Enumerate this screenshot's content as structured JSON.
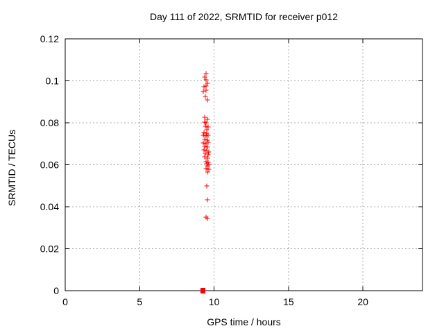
{
  "chart": {
    "title": "Day 111 of 2022, SRMTID for receiver p012",
    "xlabel": "GPS time / hours",
    "ylabel": "SRMTID / TECUs"
  },
  "chart_data": {
    "type": "scatter",
    "title": "Day 111 of 2022, SRMTID for receiver p012",
    "xlabel": "GPS time / hours",
    "ylabel": "SRMTID / TECUs",
    "xlim": [
      0,
      24
    ],
    "ylim": [
      0,
      0.12
    ],
    "xticks": [
      {
        "value": 0,
        "label": "0"
      },
      {
        "value": 5,
        "label": "5"
      },
      {
        "value": 10,
        "label": "10"
      },
      {
        "value": 15,
        "label": "15"
      },
      {
        "value": 20,
        "label": "20"
      }
    ],
    "yticks": [
      {
        "value": 0,
        "label": "0"
      },
      {
        "value": 0.02,
        "label": "0.02"
      },
      {
        "value": 0.04,
        "label": "0.04"
      },
      {
        "value": 0.06,
        "label": "0.06"
      },
      {
        "value": 0.08,
        "label": "0.08"
      },
      {
        "value": 0.1,
        "label": "0.1"
      },
      {
        "value": 0.12,
        "label": "0.12"
      }
    ],
    "grid": "dashed",
    "legend": "none",
    "marker": "plus",
    "marker_color": "#ff0000",
    "grid_color": "#a8a8a8",
    "axis_color": "#000000",
    "series": [
      {
        "name": "SRMTID",
        "points": [
          [
            9.47,
            0.1034
          ],
          [
            9.35,
            0.1019
          ],
          [
            9.45,
            0.1006
          ],
          [
            9.57,
            0.0988
          ],
          [
            9.47,
            0.0975
          ],
          [
            9.32,
            0.0972
          ],
          [
            9.45,
            0.0955
          ],
          [
            9.27,
            0.095
          ],
          [
            9.4,
            0.0925
          ],
          [
            9.57,
            0.0908
          ],
          [
            9.35,
            0.0825
          ],
          [
            9.54,
            0.0817
          ],
          [
            9.38,
            0.0803
          ],
          [
            9.47,
            0.0799
          ],
          [
            9.41,
            0.0784
          ],
          [
            9.59,
            0.0779
          ],
          [
            9.49,
            0.0766
          ],
          [
            9.32,
            0.0753
          ],
          [
            9.51,
            0.075
          ],
          [
            9.6,
            0.0742
          ],
          [
            9.27,
            0.074
          ],
          [
            9.45,
            0.0738
          ],
          [
            9.36,
            0.072
          ],
          [
            9.54,
            0.0717
          ],
          [
            9.62,
            0.0706
          ],
          [
            9.29,
            0.0703
          ],
          [
            9.47,
            0.0701
          ],
          [
            9.38,
            0.0686
          ],
          [
            9.57,
            0.0683
          ],
          [
            9.32,
            0.067
          ],
          [
            9.51,
            0.0667
          ],
          [
            9.66,
            0.0662
          ],
          [
            9.41,
            0.0653
          ],
          [
            9.6,
            0.0649
          ],
          [
            9.35,
            0.0637
          ],
          [
            9.54,
            0.0633
          ],
          [
            9.46,
            0.0615
          ],
          [
            9.6,
            0.0611
          ],
          [
            9.5,
            0.0605
          ],
          [
            9.64,
            0.0602
          ],
          [
            9.55,
            0.0595
          ],
          [
            9.47,
            0.0581
          ],
          [
            9.66,
            0.0578
          ],
          [
            9.57,
            0.0565
          ],
          [
            9.51,
            0.0498
          ],
          [
            9.54,
            0.0434
          ],
          [
            9.47,
            0.0349
          ],
          [
            9.54,
            0.0344
          ]
        ]
      }
    ],
    "zero_marker": {
      "x": 9.23,
      "y": 0,
      "style": "filled-square",
      "color": "#ff0000"
    }
  }
}
